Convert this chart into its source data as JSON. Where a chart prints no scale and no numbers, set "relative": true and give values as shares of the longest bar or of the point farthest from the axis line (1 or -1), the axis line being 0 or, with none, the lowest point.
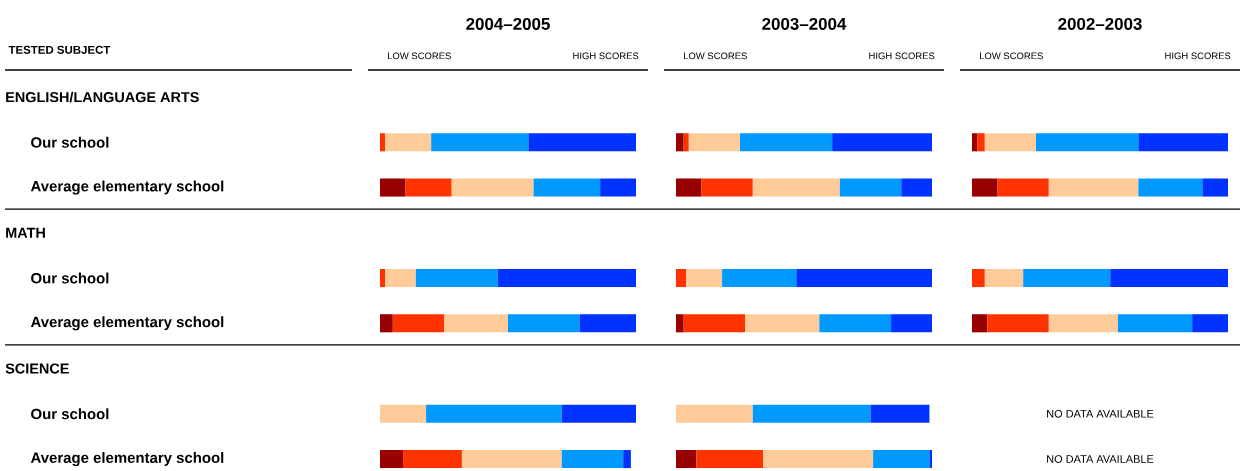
{
  "chart_data": [
    {
      "type": "bar",
      "orientation": "horizontal",
      "stacked": true,
      "relative": true,
      "tick_labels": "y",
      "title": "2004–2005",
      "ylabel": "TESTED SUBJECT",
      "annotations": [
        "LOW SCORES",
        "HIGH SCORES",
        "ENGLISH/LANGUAGE ARTS",
        "MATH",
        "SCIENCE"
      ],
      "categories": [
        null,
        "Our school",
        "Average elementary school",
        null,
        "Our school",
        "Average elementary school",
        null,
        "Our school",
        "Average elementary school"
      ],
      "series": [
        {
          "color": "#990000",
          "values": [
            null,
            null,
            0.1,
            null,
            null,
            0.05,
            null,
            null,
            0.09
          ]
        },
        {
          "color": "#ff3300",
          "values": [
            null,
            0.02,
            0.18,
            null,
            0.02,
            0.2,
            null,
            null,
            0.23
          ]
        },
        {
          "color": "#ffcc99",
          "values": [
            null,
            0.18,
            0.32,
            null,
            0.12,
            0.25,
            null,
            0.18,
            0.39
          ]
        },
        {
          "color": "#0099ff",
          "values": [
            null,
            0.38,
            0.26,
            null,
            0.32,
            0.28,
            null,
            0.53,
            0.24
          ]
        },
        {
          "color": "#0033ff",
          "values": [
            null,
            0.42,
            0.14,
            null,
            0.54,
            0.22,
            null,
            0.29,
            0.03
          ]
        }
      ]
    },
    {
      "type": "bar",
      "orientation": "horizontal",
      "stacked": true,
      "relative": true,
      "tick_labels": false,
      "title": "2003–2004",
      "annotations": [
        "LOW SCORES",
        "HIGH SCORES"
      ],
      "categories": [
        null,
        null,
        null,
        null,
        null,
        null,
        null,
        null,
        null
      ],
      "series": [
        {
          "color": "#990000",
          "values": [
            null,
            0.03,
            0.1,
            null,
            null,
            0.03,
            null,
            null,
            0.08
          ]
        },
        {
          "color": "#ff3300",
          "values": [
            null,
            0.02,
            0.2,
            null,
            0.04,
            0.24,
            null,
            null,
            0.26
          ]
        },
        {
          "color": "#ffcc99",
          "values": [
            null,
            0.2,
            0.34,
            null,
            0.14,
            0.29,
            null,
            0.3,
            0.43
          ]
        },
        {
          "color": "#0099ff",
          "values": [
            null,
            0.36,
            0.24,
            null,
            0.29,
            0.28,
            null,
            0.46,
            0.22
          ]
        },
        {
          "color": "#0033ff",
          "values": [
            null,
            0.39,
            0.12,
            null,
            0.53,
            0.16,
            null,
            0.23,
            0.01
          ]
        }
      ]
    },
    {
      "type": "bar",
      "orientation": "horizontal",
      "stacked": true,
      "relative": true,
      "tick_labels": false,
      "title": "2002–2003",
      "annotations": [
        "LOW SCORES",
        "HIGH SCORES",
        "NO DATA AVAILABLE",
        "NO DATA AVAILABLE"
      ],
      "categories": [
        null,
        null,
        null,
        null,
        null,
        null,
        null,
        null,
        null
      ],
      "series": [
        {
          "color": "#990000",
          "values": [
            null,
            0.02,
            0.1,
            null,
            null,
            0.06,
            null,
            null,
            null
          ]
        },
        {
          "color": "#ff3300",
          "values": [
            null,
            0.03,
            0.2,
            null,
            0.05,
            0.24,
            null,
            null,
            null
          ]
        },
        {
          "color": "#ffcc99",
          "values": [
            null,
            0.2,
            0.35,
            null,
            0.15,
            0.27,
            null,
            null,
            null
          ]
        },
        {
          "color": "#0099ff",
          "values": [
            null,
            0.4,
            0.25,
            null,
            0.34,
            0.29,
            null,
            null,
            null
          ]
        },
        {
          "color": "#0033ff",
          "values": [
            null,
            0.35,
            0.1,
            null,
            0.46,
            0.14,
            null,
            null,
            null
          ]
        }
      ]
    }
  ]
}
